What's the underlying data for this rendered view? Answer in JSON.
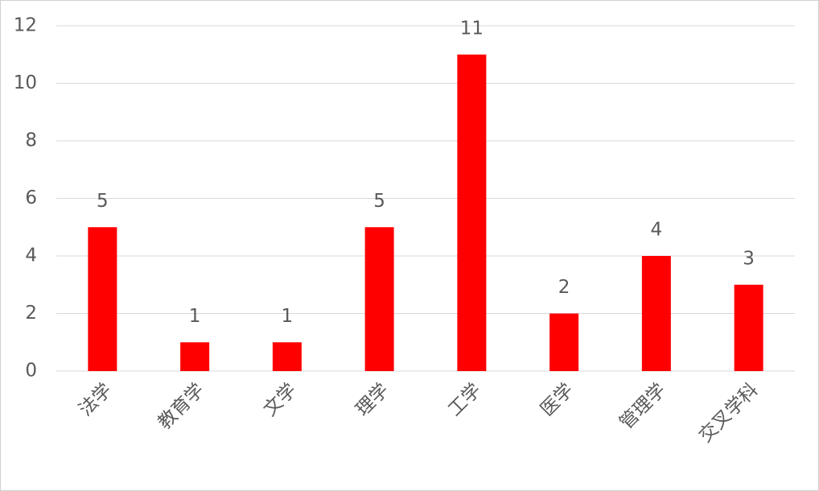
{
  "chart_data": {
    "type": "bar",
    "categories": [
      "法学",
      "教育学",
      "文学",
      "理学",
      "工学",
      "医学",
      "管理学",
      "交叉学科"
    ],
    "values": [
      5,
      1,
      1,
      5,
      11,
      2,
      4,
      3
    ],
    "color": "#ff0000",
    "ylim": [
      0,
      12
    ],
    "yticks": [
      0,
      2,
      4,
      6,
      8,
      10,
      12
    ],
    "grid": true
  }
}
